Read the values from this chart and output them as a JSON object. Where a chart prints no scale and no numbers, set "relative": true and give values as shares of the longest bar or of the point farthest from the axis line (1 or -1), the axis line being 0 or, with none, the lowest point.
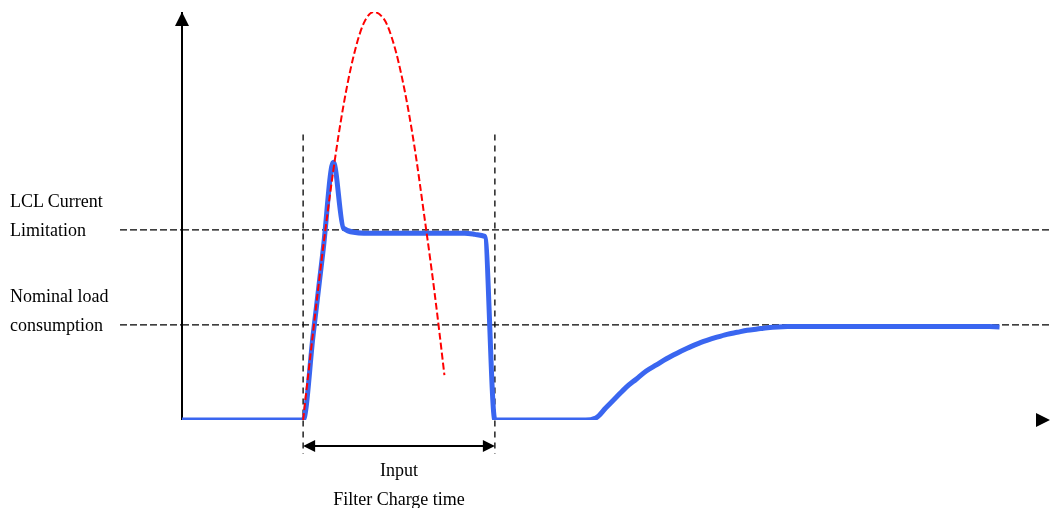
{
  "chart_data": {
    "type": "line",
    "relative": true,
    "marker": "none",
    "categories": [
      null,
      null,
      null,
      null,
      null,
      null,
      null,
      null,
      null,
      null,
      null,
      null,
      null,
      null,
      null,
      null,
      null,
      null,
      null,
      null,
      null,
      null,
      null,
      null,
      null,
      null,
      null,
      null,
      null,
      null,
      null,
      null,
      null,
      null,
      null,
      null,
      null,
      null,
      null,
      null,
      null,
      null,
      null,
      null,
      null,
      null,
      null,
      null,
      null,
      null,
      null,
      null,
      null,
      null,
      null,
      null,
      null,
      null,
      null,
      null,
      null,
      null,
      null,
      null,
      null,
      null,
      null,
      null,
      null,
      null,
      null,
      null,
      null,
      null,
      null,
      null,
      null,
      null,
      null,
      null,
      null,
      null
    ],
    "series": [
      {
        "color": "#3a66f0",
        "line_style": "solid",
        "values": [
          0,
          0,
          0,
          0,
          0,
          0,
          0,
          0,
          0,
          0,
          0,
          0,
          0,
          0.21,
          0.42,
          0.632,
          0.47,
          0.46,
          0.458,
          0.458,
          0.458,
          0.458,
          0.458,
          0.458,
          0.458,
          0.458,
          0.458,
          0.458,
          0.458,
          0.455,
          0.45,
          0,
          0,
          0,
          0,
          0,
          0,
          0,
          0,
          0,
          0,
          0.005,
          0.03,
          0.055,
          0.08,
          0.1,
          0.12,
          0.135,
          0.15,
          0.163,
          0.175,
          0.186,
          0.195,
          0.203,
          0.21,
          0.215,
          0.22,
          0.223,
          0.226,
          0.228,
          0.229,
          0.229,
          0.229,
          0.229,
          0.229,
          0.229,
          0.229,
          0.229,
          0.229,
          0.229,
          0.229,
          0.229,
          0.229,
          0.229,
          0.229,
          0.229,
          0.229,
          0.229,
          0.229,
          0.229,
          0.229,
          0.228
        ]
      },
      {
        "color": "#ff0000",
        "line_style": "dashed",
        "values": [
          null,
          null,
          null,
          null,
          null,
          null,
          null,
          null,
          null,
          null,
          null,
          null,
          0,
          0.218,
          0.426,
          0.613,
          0.771,
          0.892,
          0.972,
          1.0,
          0.983,
          0.92,
          0.815,
          0.675,
          0.501,
          0.317,
          0.11,
          null,
          null,
          null,
          null,
          null,
          null,
          null,
          null,
          null,
          null,
          null,
          null,
          null,
          null,
          null,
          null,
          null,
          null,
          null,
          null,
          null,
          null,
          null,
          null,
          null,
          null,
          null,
          null,
          null,
          null,
          null,
          null,
          null,
          null,
          null,
          null,
          null,
          null,
          null,
          null,
          null,
          null,
          null,
          null,
          null,
          null,
          null,
          null,
          null,
          null,
          null,
          null,
          null,
          null,
          null
        ]
      }
    ],
    "ref_lines": [
      {
        "axis": "y",
        "value": 0.466,
        "label": "LCL Current Limitation",
        "line_style": "dashed",
        "color": "#000000"
      },
      {
        "axis": "y",
        "value": 0.233,
        "label": "Nominal load consumption",
        "line_style": "dashed",
        "color": "#000000"
      }
    ],
    "annotations": [
      "Input\nFilter Charge time"
    ]
  }
}
